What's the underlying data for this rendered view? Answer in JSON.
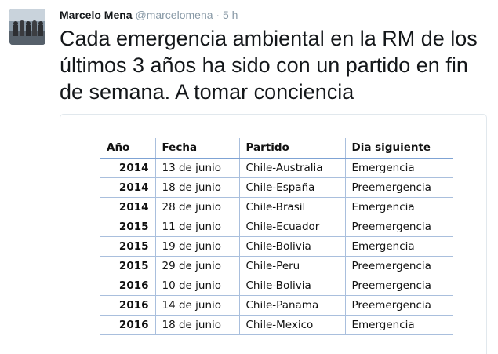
{
  "tweet": {
    "author_name": "Marcelo Mena",
    "handle": "@marcelomena",
    "separator": "·",
    "time": "5 h",
    "text": "Cada emergencia ambiental en la RM de los últimos 3 años ha sido con un partido en fin de semana. A tomar conciencia"
  },
  "table": {
    "headers": [
      "Año",
      "Fecha",
      "Partido",
      "Dia siguiente"
    ],
    "rows": [
      [
        "2014",
        "13 de junio",
        "Chile-Australia",
        "Emergencia"
      ],
      [
        "2014",
        "18 de junio",
        "Chile-España",
        "Preemergencia"
      ],
      [
        "2014",
        "28 de junio",
        "Chile-Brasil",
        "Emergencia"
      ],
      [
        "2015",
        "11 de junio",
        "Chile-Ecuador",
        "Preemergencia"
      ],
      [
        "2015",
        "19 de junio",
        "Chile-Bolivia",
        "Emergencia"
      ],
      [
        "2015",
        "29 de junio",
        "Chile-Peru",
        "Preemergencia"
      ],
      [
        "2016",
        "10 de junio",
        "Chile-Bolivia",
        "Preemergencia"
      ],
      [
        "2016",
        "14 de junio",
        "Chile-Panama",
        "Preemergencia"
      ],
      [
        "2016",
        "18 de junio",
        "Chile-Mexico",
        "Emergencia"
      ]
    ]
  },
  "colors": {
    "handle": "#8899a6",
    "table_border": "#a9bfdd",
    "card_border": "#e1e8ed"
  }
}
